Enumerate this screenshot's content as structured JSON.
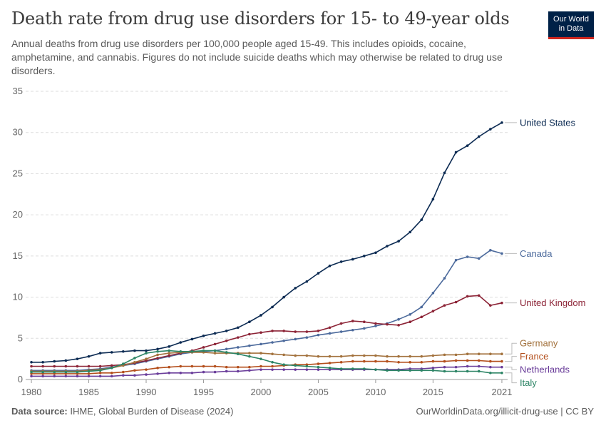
{
  "header": {
    "title": "Death rate from drug use disorders for 15- to 49-year olds",
    "subtitle": "Annual deaths from drug use disorders per 100,000 people aged 15-49. This includes opioids, cocaine, amphetamine, and cannabis. Figures do not include suicide deaths which may otherwise be related to drug use disorders.",
    "logo_line1": "Our World",
    "logo_line2": "in Data"
  },
  "footer": {
    "source_label": "Data source:",
    "source_text": "IHME, Global Burden of Disease (2024)",
    "credit": "OurWorldinData.org/illicit-drug-use | CC BY"
  },
  "chart_data": {
    "type": "line",
    "x": [
      1980,
      1981,
      1982,
      1983,
      1984,
      1985,
      1986,
      1987,
      1988,
      1989,
      1990,
      1991,
      1992,
      1993,
      1994,
      1995,
      1996,
      1997,
      1998,
      1999,
      2000,
      2001,
      2002,
      2003,
      2004,
      2005,
      2006,
      2007,
      2008,
      2009,
      2010,
      2011,
      2012,
      2013,
      2014,
      2015,
      2016,
      2017,
      2018,
      2019,
      2020,
      2021
    ],
    "xlim": [
      1979.5,
      2021.5
    ],
    "ylim": [
      0,
      35
    ],
    "xticks": [
      "1980",
      "1985",
      "1990",
      "1995",
      "2000",
      "2005",
      "2010",
      "2015",
      "2021"
    ],
    "yticks": [
      "0",
      "5",
      "10",
      "15",
      "20",
      "25",
      "30",
      "35"
    ],
    "grid": "horizontal dashed",
    "legend": "right end labels",
    "series": [
      {
        "name": "United States",
        "color": "#0b2a52",
        "values": [
          2.1,
          2.1,
          2.2,
          2.3,
          2.5,
          2.8,
          3.2,
          3.3,
          3.4,
          3.5,
          3.5,
          3.7,
          4.0,
          4.5,
          4.9,
          5.3,
          5.6,
          5.9,
          6.3,
          7.0,
          7.8,
          8.8,
          10.0,
          11.1,
          11.9,
          12.9,
          13.8,
          14.3,
          14.6,
          15.0,
          15.4,
          16.2,
          16.8,
          17.9,
          19.4,
          21.9,
          25.1,
          27.6,
          28.4,
          29.5,
          30.4,
          31.2
        ]
      },
      {
        "name": "Canada",
        "color": "#4c6a9c",
        "values": [
          1.1,
          1.1,
          1.1,
          1.1,
          1.1,
          1.2,
          1.3,
          1.5,
          1.7,
          1.9,
          2.2,
          2.5,
          2.8,
          3.1,
          3.3,
          3.4,
          3.5,
          3.7,
          3.9,
          4.1,
          4.3,
          4.5,
          4.7,
          4.9,
          5.1,
          5.4,
          5.6,
          5.8,
          6.0,
          6.2,
          6.5,
          6.8,
          7.3,
          7.9,
          8.8,
          10.5,
          12.3,
          14.5,
          14.9,
          14.7,
          15.7,
          15.3
        ]
      },
      {
        "name": "United Kingdom",
        "color": "#8c2336",
        "values": [
          1.6,
          1.6,
          1.6,
          1.6,
          1.6,
          1.6,
          1.6,
          1.7,
          1.8,
          2.0,
          2.3,
          2.6,
          2.9,
          3.2,
          3.5,
          3.9,
          4.3,
          4.7,
          5.1,
          5.5,
          5.7,
          5.9,
          5.9,
          5.8,
          5.8,
          5.9,
          6.3,
          6.8,
          7.1,
          7.0,
          6.8,
          6.7,
          6.6,
          7.0,
          7.6,
          8.3,
          9.0,
          9.4,
          10.1,
          10.2,
          9.0,
          9.3
        ]
      },
      {
        "name": "Germany",
        "color": "#a2713c",
        "values": [
          1.0,
          1.0,
          1.0,
          1.0,
          1.0,
          1.1,
          1.2,
          1.4,
          1.7,
          2.1,
          2.5,
          3.0,
          3.2,
          3.3,
          3.3,
          3.3,
          3.2,
          3.2,
          3.2,
          3.2,
          3.2,
          3.1,
          3.0,
          2.9,
          2.9,
          2.8,
          2.8,
          2.8,
          2.9,
          2.9,
          2.9,
          2.8,
          2.8,
          2.8,
          2.8,
          2.9,
          3.0,
          3.0,
          3.1,
          3.1,
          3.1,
          3.1
        ]
      },
      {
        "name": "France",
        "color": "#b34e1b",
        "values": [
          0.7,
          0.7,
          0.7,
          0.7,
          0.7,
          0.7,
          0.8,
          0.8,
          0.9,
          1.1,
          1.2,
          1.4,
          1.5,
          1.6,
          1.6,
          1.6,
          1.6,
          1.5,
          1.5,
          1.5,
          1.6,
          1.6,
          1.7,
          1.8,
          1.8,
          1.9,
          2.0,
          2.1,
          2.2,
          2.2,
          2.2,
          2.2,
          2.1,
          2.1,
          2.1,
          2.2,
          2.2,
          2.3,
          2.3,
          2.3,
          2.2,
          2.2
        ]
      },
      {
        "name": "Netherlands",
        "color": "#6a3d9a",
        "values": [
          0.4,
          0.4,
          0.4,
          0.4,
          0.4,
          0.4,
          0.4,
          0.4,
          0.5,
          0.5,
          0.6,
          0.7,
          0.8,
          0.8,
          0.8,
          0.9,
          0.9,
          1.0,
          1.0,
          1.1,
          1.2,
          1.2,
          1.2,
          1.2,
          1.2,
          1.2,
          1.2,
          1.2,
          1.2,
          1.2,
          1.2,
          1.2,
          1.2,
          1.3,
          1.3,
          1.4,
          1.5,
          1.5,
          1.6,
          1.6,
          1.5,
          1.5
        ]
      },
      {
        "name": "Italy",
        "color": "#2c8465",
        "values": [
          0.9,
          0.9,
          0.9,
          0.9,
          0.9,
          1.0,
          1.1,
          1.4,
          1.9,
          2.6,
          3.2,
          3.4,
          3.5,
          3.4,
          3.4,
          3.5,
          3.5,
          3.3,
          3.1,
          2.8,
          2.5,
          2.1,
          1.8,
          1.7,
          1.6,
          1.5,
          1.4,
          1.3,
          1.3,
          1.3,
          1.2,
          1.1,
          1.1,
          1.1,
          1.1,
          1.1,
          1.0,
          1.0,
          1.0,
          1.0,
          0.8,
          0.8
        ]
      }
    ],
    "end_labels": [
      {
        "name": "United States",
        "label_value": 31.2
      },
      {
        "name": "Canada",
        "label_value": 15.3
      },
      {
        "name": "United Kingdom",
        "label_value": 9.3
      },
      {
        "name": "Germany",
        "label_value": 4.4
      },
      {
        "name": "France",
        "label_value": 2.8
      },
      {
        "name": "Netherlands",
        "label_value": 1.2
      },
      {
        "name": "Italy",
        "label_value": -0.4
      }
    ]
  }
}
